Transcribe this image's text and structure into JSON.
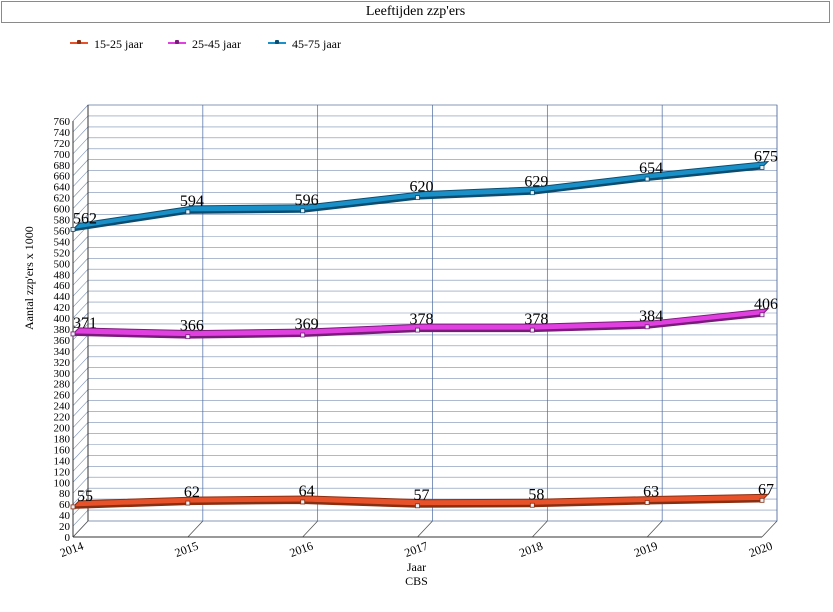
{
  "chart_data": {
    "type": "line",
    "title": "Leeftijden zzp'ers",
    "xlabel": "Jaar",
    "ylabel": "Aantal zzp'ers x 1000",
    "source": "CBS",
    "categories": [
      "2014",
      "2015",
      "2016",
      "2017",
      "2018",
      "2019",
      "2020"
    ],
    "ylim": [
      0,
      760
    ],
    "ytick_step": 20,
    "grid": true,
    "legend": "top-left",
    "series": [
      {
        "name": "15-25 jaar",
        "color": "#e8522a",
        "dark": "#8a2e10",
        "values": [
          55,
          62,
          64,
          57,
          58,
          63,
          67
        ]
      },
      {
        "name": "25-45 jaar",
        "color": "#e040e0",
        "dark": "#7a1a7a",
        "values": [
          371,
          366,
          369,
          378,
          378,
          384,
          406
        ]
      },
      {
        "name": "45-75 jaar",
        "color": "#1a90c8",
        "dark": "#0b4d70",
        "values": [
          562,
          594,
          596,
          620,
          629,
          654,
          675
        ]
      }
    ]
  }
}
